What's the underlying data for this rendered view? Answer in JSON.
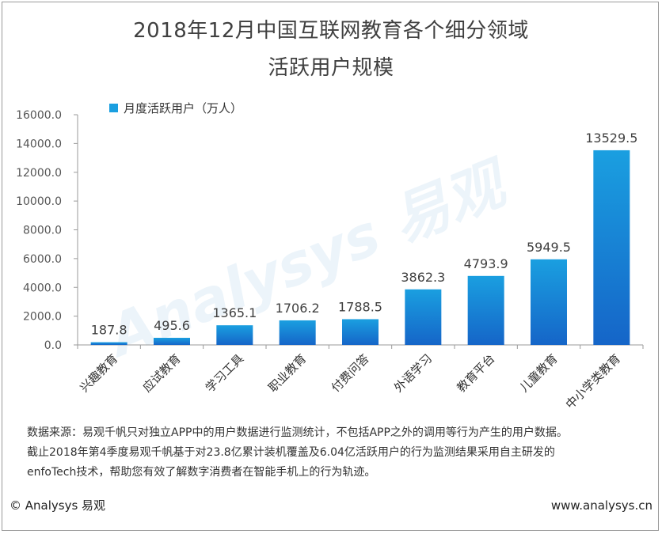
{
  "header": {
    "title_line1": "2018年12月中国互联网教育各个细分领域",
    "title_line2": "活跃用户规模"
  },
  "legend": {
    "label": "月度活跃用户（万人）"
  },
  "colors": {
    "bar_top": "#1a9fe0",
    "bar_bottom": "#1565c8",
    "axis": "#9a9a9a"
  },
  "chart_data": {
    "type": "bar",
    "categories": [
      "兴趣教育",
      "应试教育",
      "学习工具",
      "职业教育",
      "付费问答",
      "外语学习",
      "教育平台",
      "儿童教育",
      "中小学类教育"
    ],
    "series": [
      {
        "name": "月度活跃用户（万人）",
        "values": [
          187.8,
          495.6,
          1365.1,
          1706.2,
          1788.5,
          3862.3,
          4793.9,
          5949.5,
          13529.5
        ]
      }
    ],
    "value_labels": [
      "187.8",
      "495.6",
      "1365.1",
      "1706.2",
      "1788.5",
      "3862.3",
      "4793.9",
      "5949.5",
      "13529.5"
    ],
    "ylim": [
      0,
      16000
    ],
    "yticks": [
      "0.0",
      "2000.0",
      "4000.0",
      "6000.0",
      "8000.0",
      "10000.0",
      "12000.0",
      "14000.0",
      "16000.0"
    ],
    "title": "2018年12月中国互联网教育各个细分领域活跃用户规模",
    "legend_position": "top-left"
  },
  "watermark": {
    "text": "Analysys 易观"
  },
  "footer": {
    "source_line1": "数据来源：易观千帆只对独立APP中的用户数据进行监测统计，不包括APP之外的调用等行为产生的用户数据。",
    "source_line2": "截止2018年第4季度易观千帆基于对23.8亿累计装机覆盖及6.04亿活跃用户的行为监测结果采用自主研发的",
    "source_line3": "enfoTech技术，帮助您有效了解数字消费者在智能手机上的行为轨迹。",
    "copyright": "© Analysys 易观",
    "website": "www.analysys.cn"
  }
}
